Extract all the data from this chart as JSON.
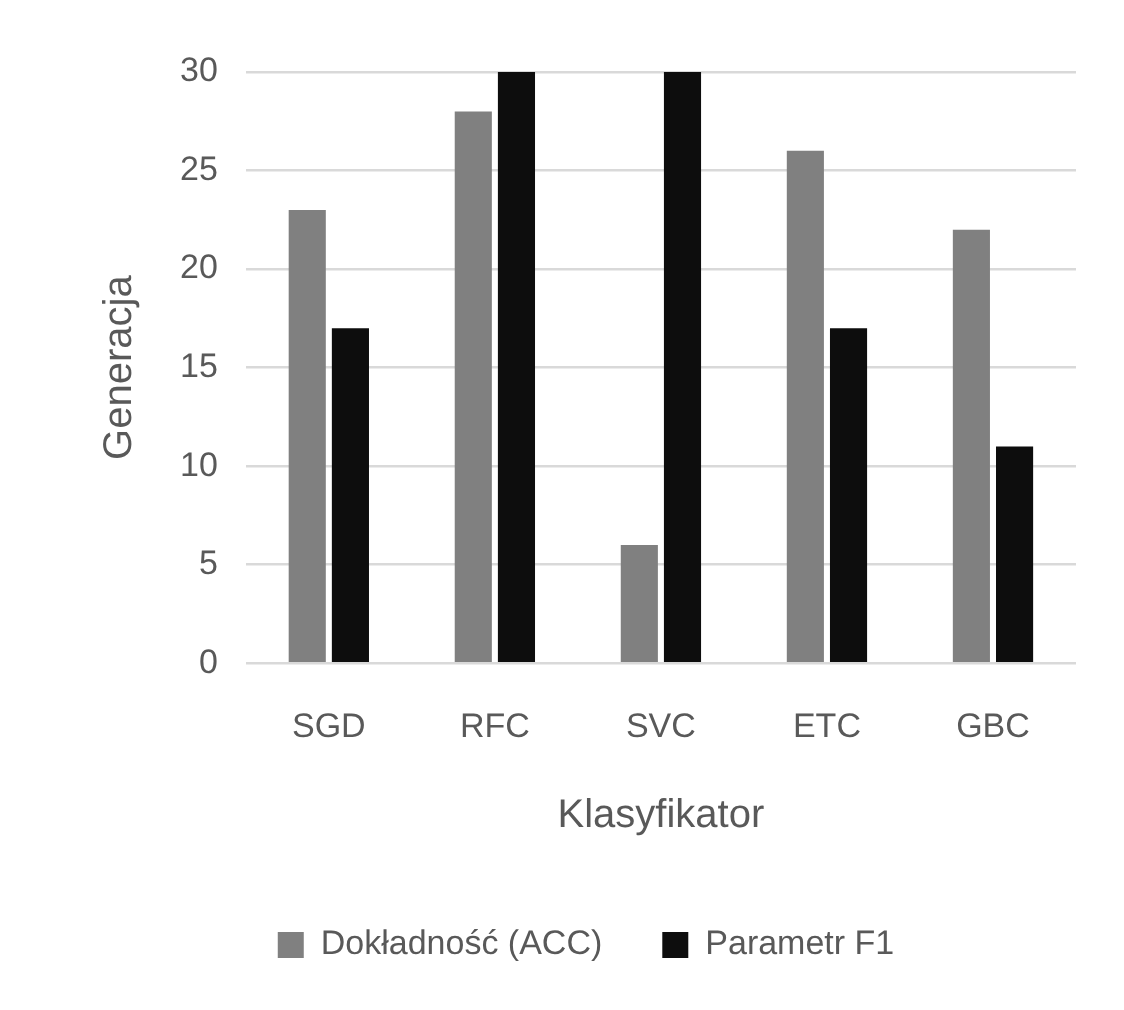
{
  "chart_data": {
    "type": "bar",
    "xlabel": "Klasyfikator",
    "ylabel": "Generacja",
    "categories": [
      "SGD",
      "RFC",
      "SVC",
      "ETC",
      "GBC"
    ],
    "series": [
      {
        "name": "Dokładność (ACC)",
        "color": "#808080",
        "values": [
          23,
          28,
          6,
          26,
          22
        ]
      },
      {
        "name": "Parametr F1",
        "color": "#0d0d0d",
        "values": [
          17,
          30,
          30,
          17,
          11
        ]
      }
    ],
    "ylim": [
      0,
      30
    ],
    "yticks": [
      0,
      5,
      10,
      15,
      20,
      25,
      30
    ],
    "grid": "y",
    "legend": "bottom"
  }
}
